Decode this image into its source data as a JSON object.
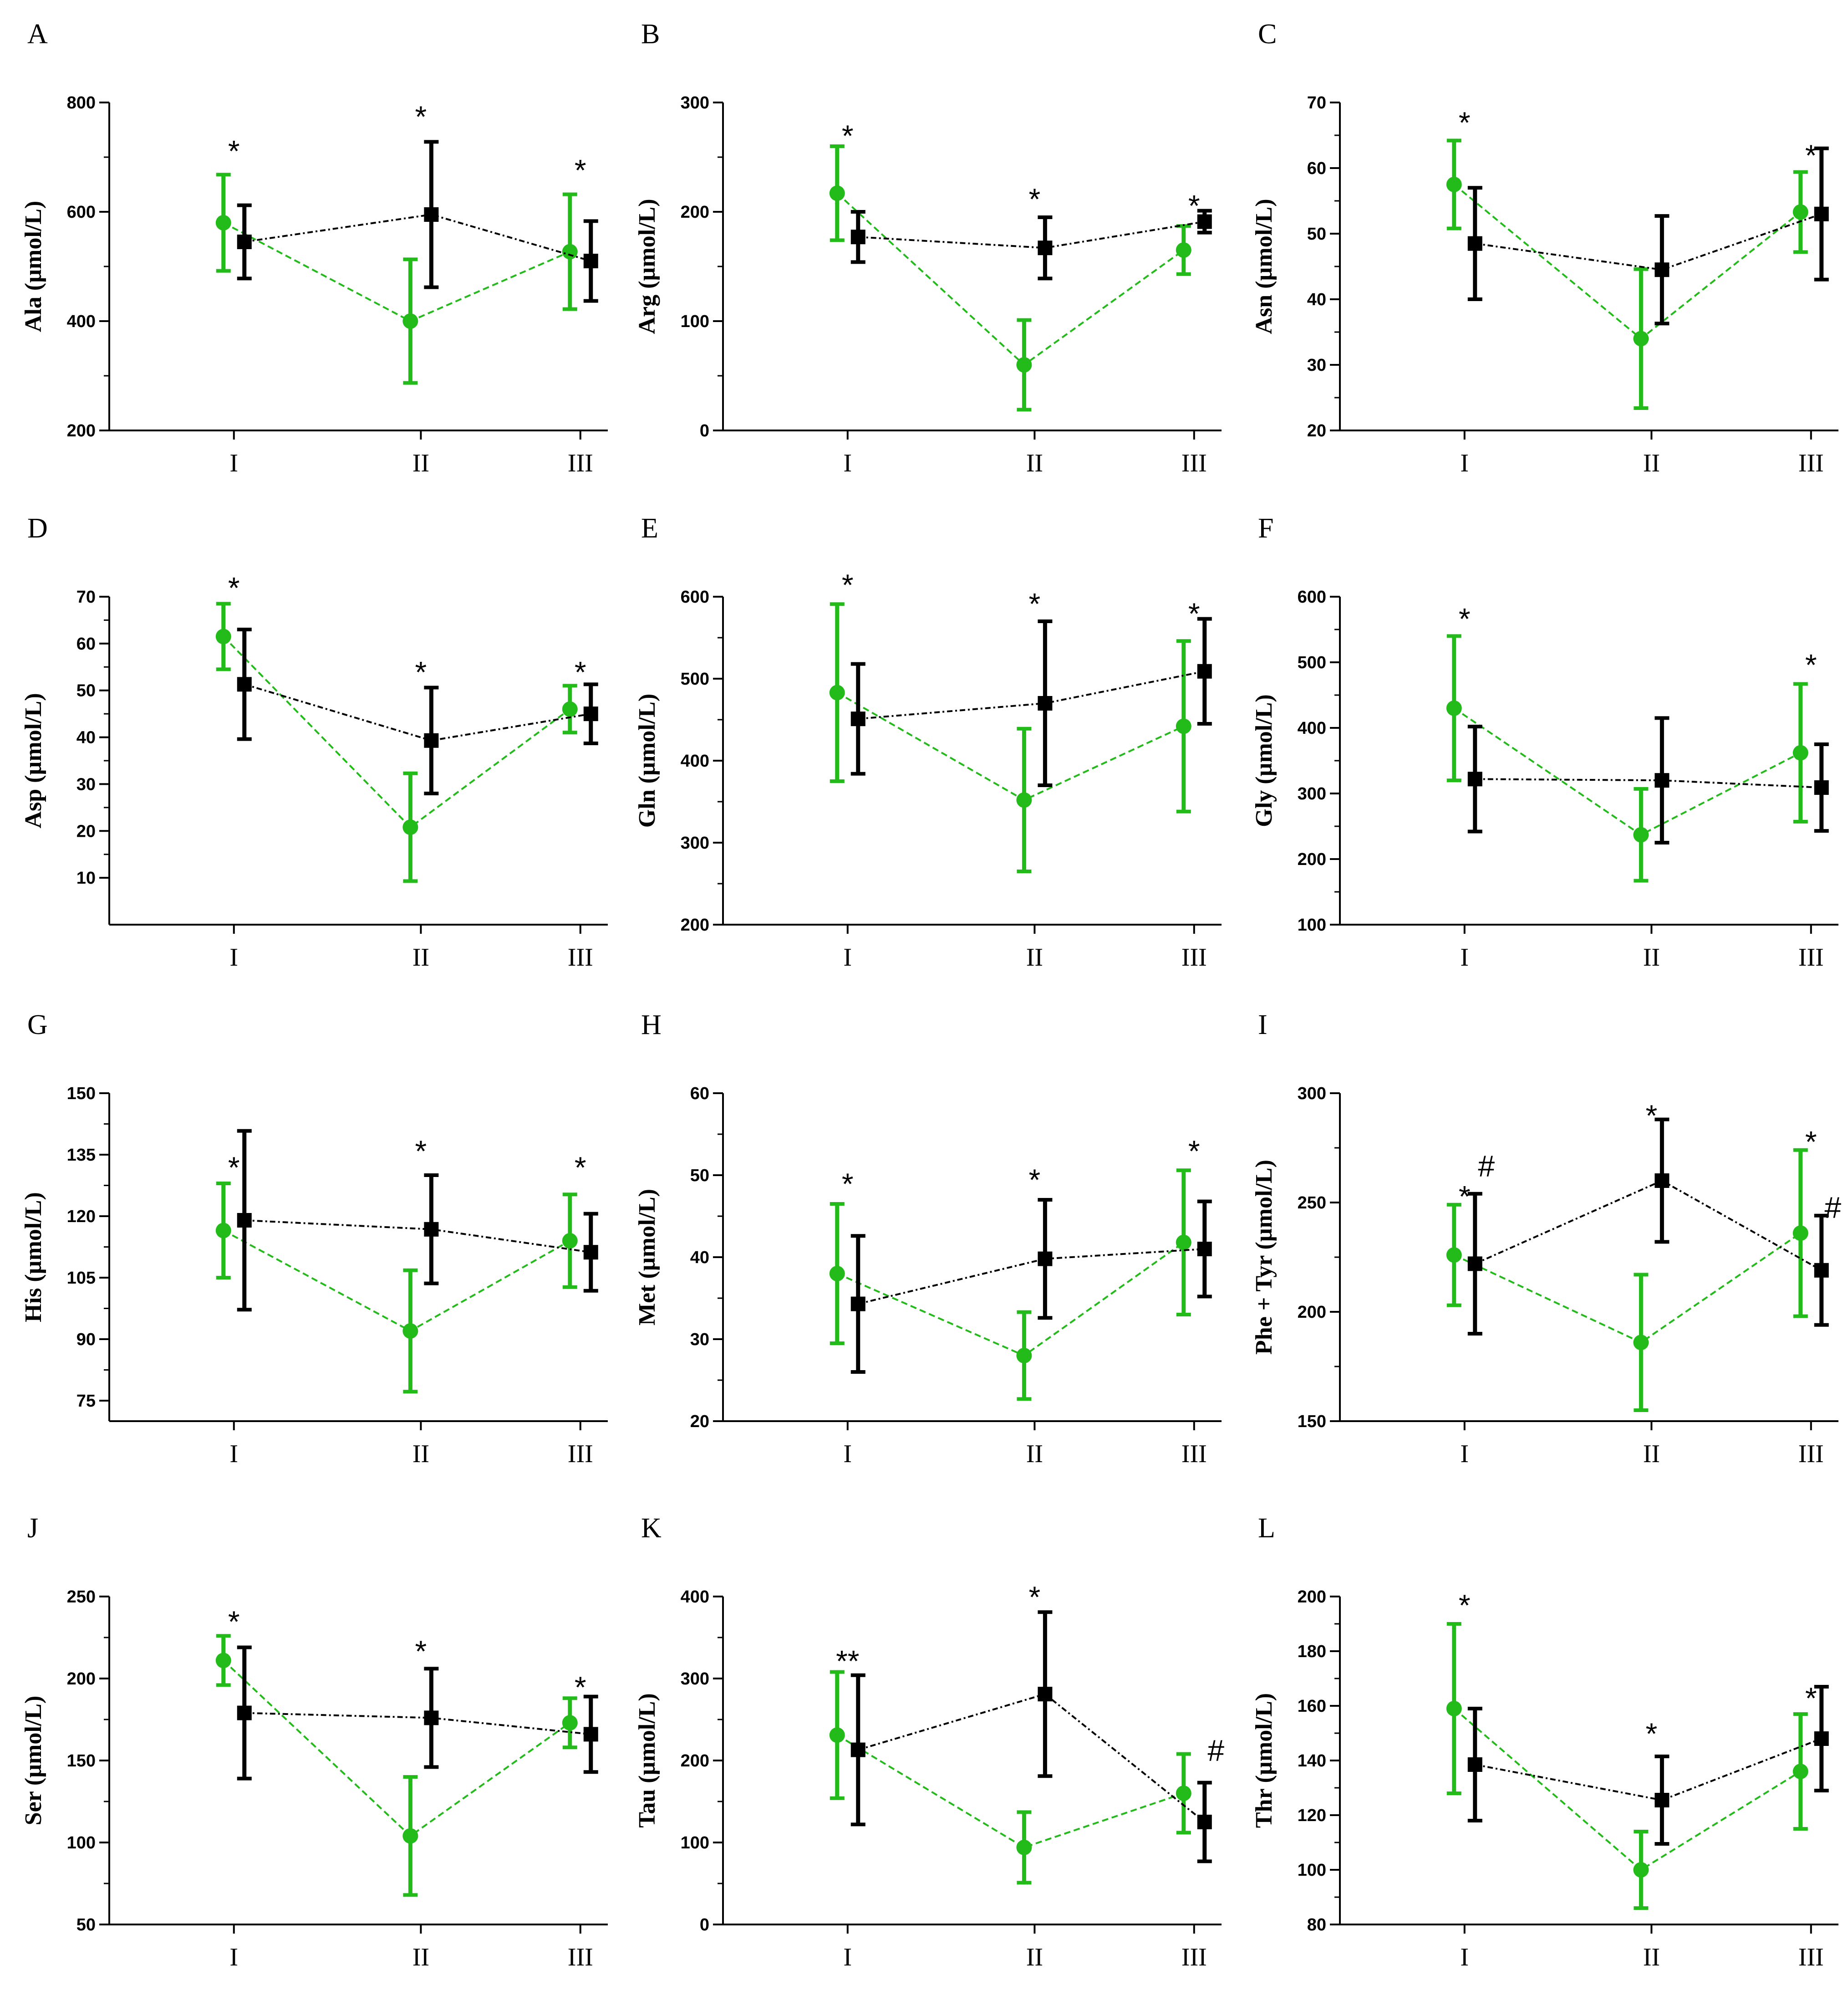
{
  "colors": {
    "green": "#22bb1a",
    "black": "#000000"
  },
  "chart_data": [
    {
      "type": "line",
      "title": "A",
      "ylabel": "Ala (µmol/L)",
      "categories": [
        "I",
        "II",
        "III"
      ],
      "ylim": [
        200,
        800
      ],
      "yticks": [
        200,
        400,
        600,
        800
      ],
      "series": [
        {
          "name": "green",
          "values": [
            580,
            400,
            527
          ],
          "errors": [
            88,
            113,
            105
          ]
        },
        {
          "name": "black",
          "values": [
            545,
            595,
            510
          ],
          "errors": [
            67,
            133,
            73
          ]
        }
      ],
      "annotations": [
        {
          "cat": 0,
          "text": "*",
          "y": 712
        },
        {
          "cat": 1,
          "text": "*",
          "y": 775
        },
        {
          "cat": 2,
          "text": "*",
          "y": 677
        }
      ]
    },
    {
      "type": "line",
      "title": "B",
      "ylabel": "Arg (µmol/L)",
      "categories": [
        "I",
        "II",
        "III"
      ],
      "ylim": [
        0,
        300
      ],
      "yticks": [
        0,
        100,
        200,
        300
      ],
      "series": [
        {
          "name": "green",
          "values": [
            217,
            60,
            165
          ],
          "errors": [
            43,
            41,
            22
          ]
        },
        {
          "name": "black",
          "values": [
            177,
            167,
            191
          ],
          "errors": [
            23,
            28,
            10
          ]
        }
      ],
      "annotations": [
        {
          "cat": 0,
          "text": "*",
          "y": 270
        },
        {
          "cat": 1,
          "text": "*",
          "y": 212
        },
        {
          "cat": 2,
          "text": "*",
          "y": 206
        }
      ]
    },
    {
      "type": "line",
      "title": "C",
      "ylabel": "Asn (µmol/L)",
      "categories": [
        "I",
        "II",
        "III"
      ],
      "ylim": [
        20,
        70
      ],
      "yticks": [
        20,
        30,
        40,
        50,
        60,
        70
      ],
      "series": [
        {
          "name": "green",
          "values": [
            57.5,
            34,
            53.3
          ],
          "errors": [
            6.7,
            10.6,
            6.1
          ]
        },
        {
          "name": "black",
          "values": [
            48.5,
            44.5,
            53
          ],
          "errors": [
            8.5,
            8.2,
            10
          ]
        }
      ],
      "annotations": [
        {
          "cat": 0,
          "text": "*",
          "y": 67
        },
        {
          "cat": 2,
          "text": "*",
          "y": 62
        }
      ]
    },
    {
      "type": "line",
      "title": "D",
      "ylabel": "Asp (µmol/L)",
      "categories": [
        "I",
        "II",
        "III"
      ],
      "ylim": [
        0,
        70
      ],
      "yticks": [
        10,
        20,
        30,
        40,
        50,
        60,
        70
      ],
      "series": [
        {
          "name": "green",
          "values": [
            61.5,
            20.8,
            46
          ],
          "errors": [
            7,
            11.5,
            5
          ]
        },
        {
          "name": "black",
          "values": [
            51.3,
            39.3,
            45
          ],
          "errors": [
            11.7,
            11.3,
            6.3
          ]
        }
      ],
      "annotations": [
        {
          "cat": 0,
          "text": "*",
          "y": 72
        },
        {
          "cat": 1,
          "text": "*",
          "y": 54
        },
        {
          "cat": 2,
          "text": "*",
          "y": 54
        }
      ]
    },
    {
      "type": "line",
      "title": "E",
      "ylabel": "Gln (µmol/L)",
      "categories": [
        "I",
        "II",
        "III"
      ],
      "ylim": [
        200,
        600
      ],
      "yticks": [
        200,
        300,
        400,
        500,
        600
      ],
      "series": [
        {
          "name": "green",
          "values": [
            483,
            352,
            442
          ],
          "errors": [
            108,
            87,
            104
          ]
        },
        {
          "name": "black",
          "values": [
            451,
            470,
            509
          ],
          "errors": [
            67,
            100,
            64
          ]
        }
      ],
      "annotations": [
        {
          "cat": 0,
          "text": "*",
          "y": 615
        },
        {
          "cat": 1,
          "text": "*",
          "y": 592
        },
        {
          "cat": 2,
          "text": "*",
          "y": 580
        }
      ]
    },
    {
      "type": "line",
      "title": "F",
      "ylabel": "Gly (µmol/L)",
      "categories": [
        "I",
        "II",
        "III"
      ],
      "ylim": [
        100,
        600
      ],
      "yticks": [
        100,
        200,
        300,
        400,
        500,
        600
      ],
      "series": [
        {
          "name": "green",
          "values": [
            430,
            237,
            362
          ],
          "errors": [
            110,
            70,
            105
          ]
        },
        {
          "name": "black",
          "values": [
            322,
            320,
            309
          ],
          "errors": [
            80,
            95,
            66
          ]
        }
      ],
      "annotations": [
        {
          "cat": 0,
          "text": "*",
          "y": 567
        },
        {
          "cat": 2,
          "text": "*",
          "y": 497
        }
      ]
    },
    {
      "type": "line",
      "title": "G",
      "ylabel": "His (µmol/L)",
      "categories": [
        "I",
        "II",
        "III"
      ],
      "ylim": [
        70,
        150
      ],
      "yticks": [
        75,
        90,
        105,
        120,
        135,
        150
      ],
      "series": [
        {
          "name": "green",
          "values": [
            116.5,
            92,
            114
          ],
          "errors": [
            11.5,
            14.8,
            11.3
          ]
        },
        {
          "name": "black",
          "values": [
            119,
            116.8,
            111.2
          ],
          "errors": [
            21.8,
            13.2,
            9.4
          ]
        }
      ],
      "annotations": [
        {
          "cat": 0,
          "text": "*",
          "y": 132
        },
        {
          "cat": 1,
          "text": "*",
          "y": 136
        },
        {
          "cat": 2,
          "text": "*",
          "y": 132
        }
      ]
    },
    {
      "type": "line",
      "title": "H",
      "ylabel": "Met (µmol/L)",
      "categories": [
        "I",
        "II",
        "III"
      ],
      "ylim": [
        20,
        60
      ],
      "yticks": [
        20,
        30,
        40,
        50,
        60
      ],
      "series": [
        {
          "name": "green",
          "values": [
            38,
            28,
            41.8
          ],
          "errors": [
            8.5,
            5.3,
            8.8
          ]
        },
        {
          "name": "black",
          "values": [
            34.3,
            39.8,
            41
          ],
          "errors": [
            8.3,
            7.2,
            5.8
          ]
        }
      ],
      "annotations": [
        {
          "cat": 0,
          "text": "*",
          "y": 49
        },
        {
          "cat": 1,
          "text": "*",
          "y": 49.5
        },
        {
          "cat": 2,
          "text": "*",
          "y": 53
        }
      ]
    },
    {
      "type": "line",
      "title": "I",
      "ylabel": "Phe + Tyr (µmol/L)",
      "categories": [
        "I",
        "II",
        "III"
      ],
      "ylim": [
        150,
        300
      ],
      "yticks": [
        150,
        200,
        250,
        300
      ],
      "series": [
        {
          "name": "green",
          "values": [
            226,
            186,
            236
          ],
          "errors": [
            23,
            31,
            38
          ]
        },
        {
          "name": "black",
          "values": [
            222,
            260,
            219
          ],
          "errors": [
            32,
            28,
            25
          ]
        }
      ],
      "annotations": [
        {
          "cat": 0,
          "text": "*",
          "y": 253
        },
        {
          "cat": 0,
          "text": "#",
          "y": 267
        },
        {
          "cat": 1,
          "text": "*",
          "y": 290
        },
        {
          "cat": 2,
          "text": "*",
          "y": 278
        },
        {
          "cat": 2,
          "text": "#",
          "y": 248
        }
      ]
    },
    {
      "type": "line",
      "title": "J",
      "ylabel": "Ser (µmol/L)",
      "categories": [
        "I",
        "II",
        "III"
      ],
      "ylim": [
        50,
        250
      ],
      "yticks": [
        50,
        100,
        150,
        200,
        250
      ],
      "series": [
        {
          "name": "green",
          "values": [
            211,
            104,
            173
          ],
          "errors": [
            15,
            36,
            15
          ]
        },
        {
          "name": "black",
          "values": [
            179,
            176,
            166
          ],
          "errors": [
            40,
            30,
            23
          ]
        }
      ],
      "annotations": [
        {
          "cat": 0,
          "text": "*",
          "y": 235
        },
        {
          "cat": 1,
          "text": "*",
          "y": 217
        },
        {
          "cat": 2,
          "text": "*",
          "y": 195
        }
      ]
    },
    {
      "type": "line",
      "title": "K",
      "ylabel": "Tau (µmol/L)",
      "categories": [
        "I",
        "II",
        "III"
      ],
      "ylim": [
        0,
        400
      ],
      "yticks": [
        0,
        100,
        200,
        300,
        400
      ],
      "series": [
        {
          "name": "green",
          "values": [
            231,
            94,
            160
          ],
          "errors": [
            77,
            43,
            48
          ]
        },
        {
          "name": "black",
          "values": [
            213,
            281,
            125
          ],
          "errors": [
            91,
            100,
            48
          ]
        }
      ],
      "annotations": [
        {
          "cat": 0,
          "text": "**",
          "y": 322
        },
        {
          "cat": 1,
          "text": "*",
          "y": 400
        },
        {
          "cat": 2,
          "text": "#",
          "y": 213
        }
      ]
    },
    {
      "type": "line",
      "title": "L",
      "ylabel": "Thr (µmol/L)",
      "categories": [
        "I",
        "II",
        "III"
      ],
      "ylim": [
        80,
        200
      ],
      "yticks": [
        80,
        100,
        120,
        140,
        160,
        180,
        200
      ],
      "series": [
        {
          "name": "green",
          "values": [
            159,
            100,
            136
          ],
          "errors": [
            31,
            14,
            21
          ]
        },
        {
          "name": "black",
          "values": [
            138.5,
            125.5,
            148
          ],
          "errors": [
            20.5,
            16,
            19
          ]
        }
      ],
      "annotations": [
        {
          "cat": 0,
          "text": "*",
          "y": 197
        },
        {
          "cat": 1,
          "text": "*",
          "y": 150
        },
        {
          "cat": 2,
          "text": "*",
          "y": 163
        }
      ]
    }
  ]
}
